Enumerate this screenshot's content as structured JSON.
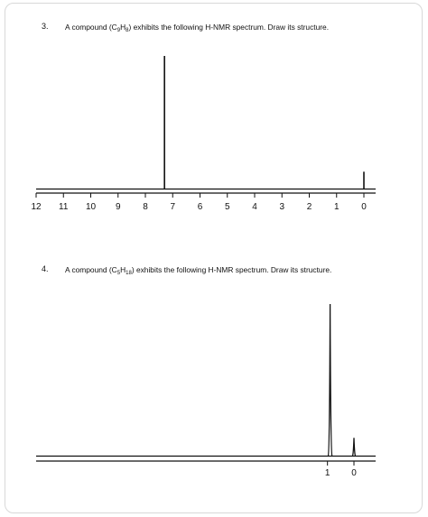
{
  "q3": {
    "number": "3.",
    "text_pre": "A compound (C",
    "sub1": "9",
    "text_mid": "H",
    "sub2": "8",
    "text_post": ") exhibits the following H-NMR spectrum. Draw its structure."
  },
  "q4": {
    "number": "4.",
    "text_pre": "A compound (C",
    "sub1": "5",
    "text_mid": "H",
    "sub2": "18",
    "text_post": ") exhibits the following H-NMR spectrum. Draw its structure."
  },
  "chart_data": [
    {
      "type": "line",
      "xlim": [
        12,
        0
      ],
      "x_ticks": [
        12,
        11,
        10,
        9,
        8,
        7,
        6,
        5,
        4,
        3,
        2,
        1,
        0
      ],
      "x_tick_labels": [
        "12",
        "11",
        "10",
        "9",
        "8",
        "7",
        "6",
        "5",
        "4",
        "3",
        "2",
        "1",
        "0"
      ],
      "peaks": [
        {
          "x": 7.3,
          "height": 1.0
        },
        {
          "x": 0.0,
          "height": 0.13
        }
      ],
      "color": "#111111"
    },
    {
      "type": "line",
      "xlim": [
        12,
        0
      ],
      "x_ticks": [
        1,
        0
      ],
      "x_tick_labels": [
        "1",
        "0"
      ],
      "peaks": [
        {
          "x": 0.9,
          "height": 1.0
        },
        {
          "x": 0.0,
          "height": 0.12
        }
      ],
      "color": "#111111"
    }
  ]
}
